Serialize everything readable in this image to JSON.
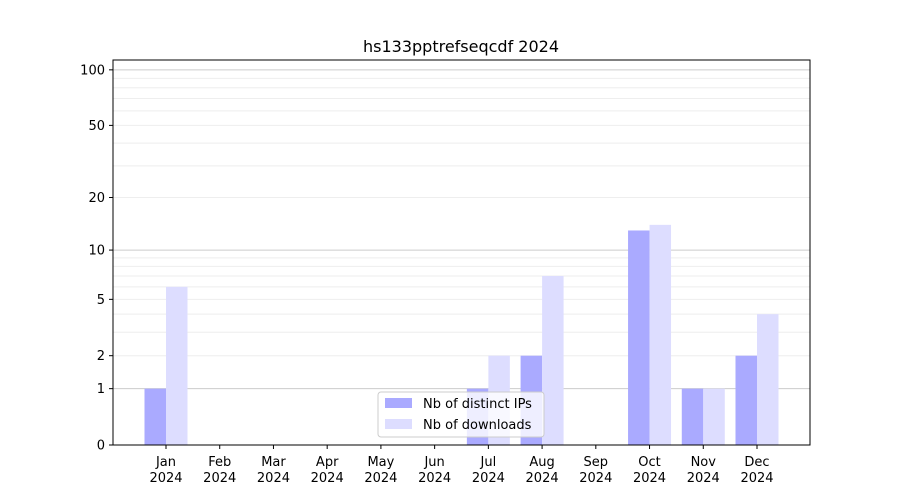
{
  "chart_data": {
    "type": "bar",
    "title": "hs133pptrefseqcdf 2024",
    "xlabel": "",
    "ylabel": "",
    "yscale": "symlog (log of 1+y)",
    "ylim": [
      0,
      113
    ],
    "yticks": [
      0,
      1,
      2,
      5,
      10,
      20,
      50,
      100
    ],
    "grid": true,
    "legend_position": "bottom-center",
    "categories": [
      "Jan\n2024",
      "Feb\n2024",
      "Mar\n2024",
      "Apr\n2024",
      "May\n2024",
      "Jun\n2024",
      "Jul\n2024",
      "Aug\n2024",
      "Sep\n2024",
      "Oct\n2024",
      "Nov\n2024",
      "Dec\n2024"
    ],
    "series": [
      {
        "name": "Nb of distinct IPs",
        "color": "#aaaaff",
        "values": [
          1,
          0,
          0,
          0,
          0,
          0,
          1,
          2,
          0,
          13,
          1,
          2
        ]
      },
      {
        "name": "Nb of downloads",
        "color": "#ddddff",
        "values": [
          6,
          0,
          0,
          0,
          0,
          0,
          2,
          7,
          0,
          14,
          1,
          4
        ]
      }
    ]
  }
}
